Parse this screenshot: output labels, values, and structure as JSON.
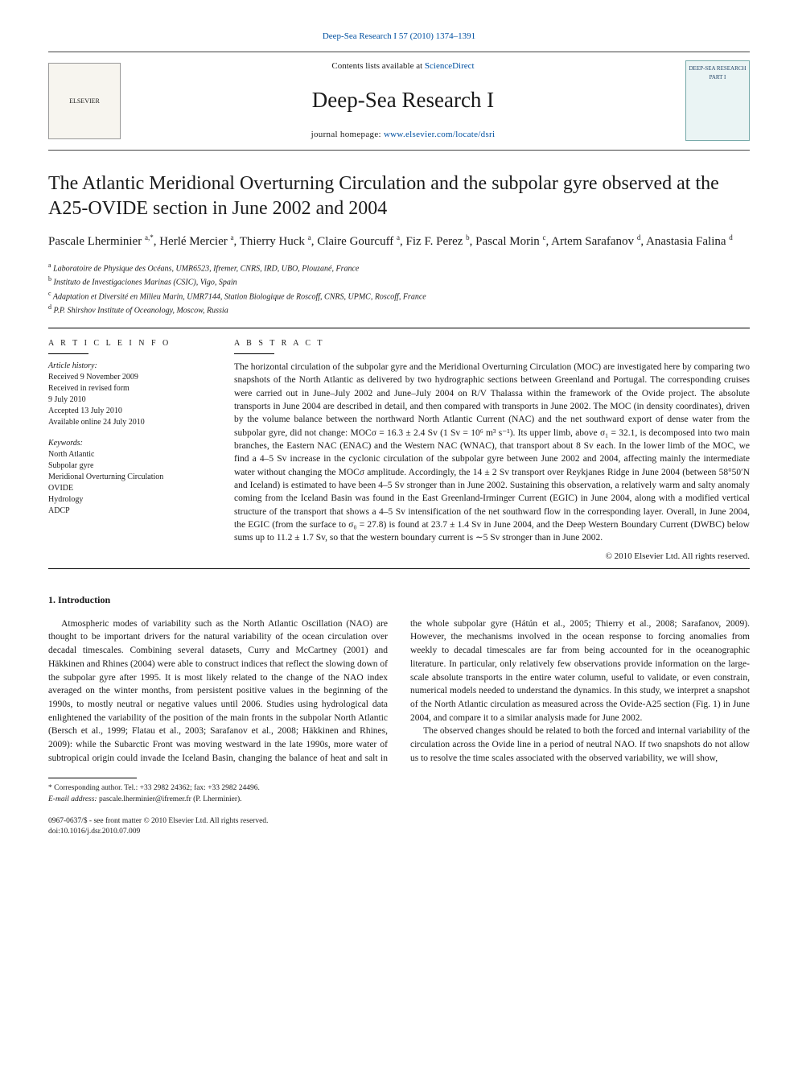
{
  "topJournalRef": "Deep-Sea Research I 57 (2010) 1374–1391",
  "header": {
    "contentsPrefix": "Contents lists available at ",
    "contentsLink": "ScienceDirect",
    "journalName": "Deep-Sea Research I",
    "homepagePrefix": "journal homepage: ",
    "homepageUrl": "www.elsevier.com/locate/dsri",
    "publisherLogoAlt": "ELSEVIER",
    "coverAlt": "DEEP-SEA RESEARCH PART I"
  },
  "title": "The Atlantic Meridional Overturning Circulation and the subpolar gyre observed at the A25-OVIDE section in June 2002 and 2004",
  "authorsHtml": "Pascale Lherminier <sup>a,*</sup>, Herlé Mercier <sup>a</sup>, Thierry Huck <sup>a</sup>, Claire Gourcuff <sup>a</sup>, Fiz F. Perez <sup>b</sup>, Pascal Morin <sup>c</sup>, Artem Sarafanov <sup>d</sup>, Anastasia Falina <sup>d</sup>",
  "affiliations": [
    {
      "sup": "a",
      "text": "Laboratoire de Physique des Océans, UMR6523, Ifremer, CNRS, IRD, UBO, Plouzané, France"
    },
    {
      "sup": "b",
      "text": "Instituto de Investigaciones Marinas (CSIC), Vigo, Spain"
    },
    {
      "sup": "c",
      "text": "Adaptation et Diversité en Milieu Marin, UMR7144, Station Biologique de Roscoff, CNRS, UPMC, Roscoff, France"
    },
    {
      "sup": "d",
      "text": "P.P. Shirshov Institute of Oceanology, Moscow, Russia"
    }
  ],
  "articleInfo": {
    "heading": "A R T I C L E   I N F O",
    "historyLabel": "Article history:",
    "history": [
      "Received 9 November 2009",
      "Received in revised form",
      "9 July 2010",
      "Accepted 13 July 2010",
      "Available online 24 July 2010"
    ],
    "keywordsLabel": "Keywords:",
    "keywords": [
      "North Atlantic",
      "Subpolar gyre",
      "Meridional Overturning Circulation",
      "OVIDE",
      "Hydrology",
      "ADCP"
    ]
  },
  "abstract": {
    "heading": "A B S T R A C T",
    "text": "The horizontal circulation of the subpolar gyre and the Meridional Overturning Circulation (MOC) are investigated here by comparing two snapshots of the North Atlantic as delivered by two hydrographic sections between Greenland and Portugal. The corresponding cruises were carried out in June–July 2002 and June–July 2004 on R/V Thalassa within the framework of the Ovide project. The absolute transports in June 2004 are described in detail, and then compared with transports in June 2002. The MOC (in density coordinates), driven by the volume balance between the northward North Atlantic Current (NAC) and the net southward export of dense water from the subpolar gyre, did not change: MOCσ = 16.3 ± 2.4 Sv (1 Sv = 10⁶ m³ s⁻¹). Its upper limb, above σ₁ = 32.1, is decomposed into two main branches, the Eastern NAC (ENAC) and the Western NAC (WNAC), that transport about 8 Sv each. In the lower limb of the MOC, we find a 4–5 Sv increase in the cyclonic circulation of the subpolar gyre between June 2002 and 2004, affecting mainly the intermediate water without changing the MOCσ amplitude. Accordingly, the 14 ± 2 Sv transport over Reykjanes Ridge in June 2004 (between 58°50′N and Iceland) is estimated to have been 4–5 Sv stronger than in June 2002. Sustaining this observation, a relatively warm and salty anomaly coming from the Iceland Basin was found in the East Greenland-Irminger Current (EGIC) in June 2004, along with a modified vertical structure of the transport that shows a 4–5 Sv intensification of the net southward flow in the corresponding layer. Overall, in June 2004, the EGIC (from the surface to σ₀ = 27.8) is found at 23.7 ± 1.4 Sv in June 2004, and the Deep Western Boundary Current (DWBC) below sums up to 11.2 ± 1.7 Sv, so that the western boundary current is ∼5 Sv stronger than in June 2002.",
    "copyright": "© 2010 Elsevier Ltd. All rights reserved."
  },
  "section1Heading": "1. Introduction",
  "bodyParagraphs": [
    "Atmospheric modes of variability such as the North Atlantic Oscillation (NAO) are thought to be important drivers for the natural variability of the ocean circulation over decadal timescales. Combining several datasets, Curry and McCartney (2001) and Häkkinen and Rhines (2004) were able to construct indices that reflect the slowing down of the subpolar gyre after 1995. It is most likely related to the change of the NAO index averaged on the winter months, from persistent positive values in the beginning of the 1990s, to mostly neutral or negative values until 2006. Studies using hydrological data enlightened the variability of the position of the main fronts in the subpolar North Atlantic (Bersch et al., 1999; Flatau et al., 2003; Sarafanov et al., 2008; Häkkinen and Rhines, 2009): while the Subarctic Front was moving westward in the late 1990s, more water of subtropical origin could invade the Iceland Basin, changing the balance of heat and salt in the whole subpolar gyre (Hátún et al., 2005; Thierry et al., 2008; Sarafanov, 2009). However, the mechanisms involved in the ocean response to forcing anomalies from weekly to decadal timescales are far from being accounted for in the oceanographic literature. In particular, only relatively few observations provide information on the large-scale absolute transports in the entire water column, useful to validate, or even constrain, numerical models needed to understand the dynamics. In this study, we interpret a snapshot of the North Atlantic circulation as measured across the Ovide-A25 section (Fig. 1) in June 2004, and compare it to a similar analysis made for June 2002.",
    "The observed changes should be related to both the forced and internal variability of the circulation across the Ovide line in a period of neutral NAO. If two snapshots do not allow us to resolve the time scales associated with the observed variability, we will show,"
  ],
  "correspondingNote": "* Corresponding author. Tel.: +33 2982 24362; fax: +33 2982 24496.",
  "emailLabel": "E-mail address:",
  "email": "pascale.lherminier@ifremer.fr (P. Lherminier).",
  "footer": {
    "issn": "0967-0637/$ - see front matter © 2010 Elsevier Ltd. All rights reserved.",
    "doi": "doi:10.1016/j.dsr.2010.07.009"
  },
  "colors": {
    "link": "#0050a0",
    "text": "#1a1a1a",
    "ruleLight": "#444444",
    "background": "#ffffff"
  }
}
